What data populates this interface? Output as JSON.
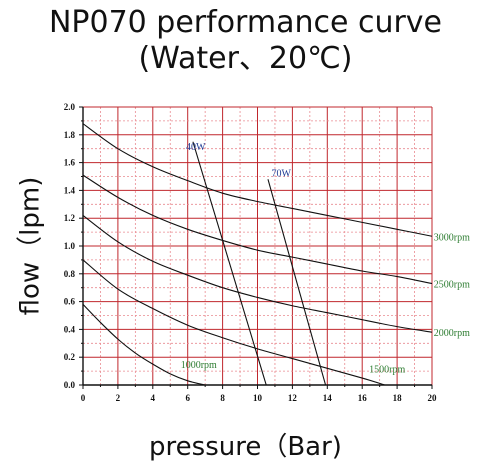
{
  "colors": {
    "grid_major": "#c0272d",
    "grid_minor": "#e98a90",
    "curve": "#111111",
    "rpm_label": "#2e7d32",
    "watt_label": "#1f3a93"
  },
  "chart_data": {
    "type": "line",
    "title": "NP070 performance curve",
    "subtitle": "(Water、20℃)",
    "xlabel": "pressure（Bar)",
    "ylabel": "flow（lpm)",
    "xlim": [
      0,
      20
    ],
    "ylim": [
      0,
      2.0
    ],
    "x_ticks": [
      "0",
      "2",
      "4",
      "6",
      "8",
      "10",
      "12",
      "14",
      "16",
      "18",
      "20"
    ],
    "y_ticks": [
      "0.0",
      "0.2",
      "0.4",
      "0.6",
      "0.8",
      "1.0",
      "1.2",
      "1.4",
      "1.6",
      "1.8",
      "2.0"
    ],
    "grid": true,
    "series": [
      {
        "name": "3000rpm",
        "x": [
          0,
          2,
          4,
          6,
          8,
          10,
          12,
          14,
          16,
          18,
          20
        ],
        "y": [
          1.88,
          1.7,
          1.57,
          1.47,
          1.38,
          1.32,
          1.27,
          1.22,
          1.17,
          1.12,
          1.07
        ]
      },
      {
        "name": "2500rpm",
        "x": [
          0,
          2,
          4,
          6,
          8,
          10,
          12,
          14,
          16,
          18,
          20
        ],
        "y": [
          1.51,
          1.35,
          1.22,
          1.12,
          1.04,
          0.97,
          0.92,
          0.87,
          0.82,
          0.78,
          0.73
        ]
      },
      {
        "name": "2000rpm",
        "x": [
          0,
          2,
          4,
          6,
          8,
          10,
          12,
          14,
          16,
          18,
          20
        ],
        "y": [
          1.22,
          1.03,
          0.89,
          0.79,
          0.7,
          0.63,
          0.57,
          0.52,
          0.47,
          0.42,
          0.38
        ]
      },
      {
        "name": "1500rpm",
        "x": [
          0,
          2,
          4,
          6,
          8,
          10,
          12,
          14,
          16,
          17.3
        ],
        "y": [
          0.9,
          0.69,
          0.55,
          0.43,
          0.34,
          0.26,
          0.19,
          0.12,
          0.05,
          0.0
        ]
      },
      {
        "name": "1000rpm",
        "x": [
          0,
          1,
          2,
          3,
          4,
          5,
          6,
          7
        ],
        "y": [
          0.58,
          0.45,
          0.33,
          0.23,
          0.15,
          0.08,
          0.03,
          0.0
        ]
      },
      {
        "name": "40W",
        "x": [
          6.3,
          10.5
        ],
        "y": [
          1.75,
          0.0
        ]
      },
      {
        "name": "70W",
        "x": [
          10.6,
          13.9
        ],
        "y": [
          1.48,
          0.0
        ]
      }
    ]
  },
  "curve_labels": [
    {
      "text": "3000rpm",
      "x": 20.1,
      "y": 1.07,
      "kind": "rpm"
    },
    {
      "text": "2500rpm",
      "x": 20.1,
      "y": 0.73,
      "kind": "rpm"
    },
    {
      "text": "2000rpm",
      "x": 20.1,
      "y": 0.38,
      "kind": "rpm"
    },
    {
      "text": "1500rpm",
      "x": 16.4,
      "y": 0.12,
      "kind": "rpm"
    },
    {
      "text": "1000rpm",
      "x": 5.6,
      "y": 0.15,
      "kind": "rpm"
    },
    {
      "text": "40W",
      "x": 5.9,
      "y": 1.72,
      "kind": "watt"
    },
    {
      "text": "70W",
      "x": 10.8,
      "y": 1.53,
      "kind": "watt"
    }
  ]
}
